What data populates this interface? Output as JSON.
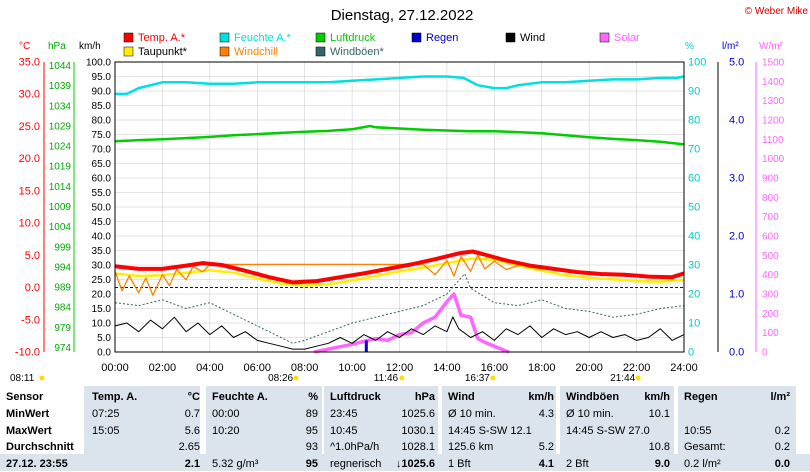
{
  "header": {
    "title": "Dienstag, 27.12.2022",
    "credit": "© Weber Mike"
  },
  "units": {
    "temp": "°C",
    "pressure": "hPa",
    "wind": "km/h",
    "humidity": "%",
    "rain": "l/m²",
    "solar": "W/m²"
  },
  "legend": [
    {
      "label": "Temp. A.*",
      "color": "#ff0000"
    },
    {
      "label": "Feuchte A.*",
      "color": "#00e0e0"
    },
    {
      "label": "Luftdruck",
      "color": "#00cc00"
    },
    {
      "label": "Regen",
      "color": "#0000cc"
    },
    {
      "label": "Wind",
      "color": "#000000"
    },
    {
      "label": "Solar",
      "color": "#ff66ff"
    },
    {
      "label": "Taupunkt*",
      "color": "#ffee00"
    },
    {
      "label": "Windchill",
      "color": "#ff8000"
    },
    {
      "label": "Windböen*",
      "color": "#336666"
    }
  ],
  "axes": {
    "temp_ticks": [
      "35.0",
      "30.0",
      "25.0",
      "20.0",
      "15.0",
      "10.0",
      "5.0",
      "0.0",
      "-5.0",
      "-10.0"
    ],
    "pressure_ticks": [
      "1044",
      "1039",
      "1034",
      "1029",
      "1024",
      "1019",
      "1014",
      "1009",
      "1004",
      "999",
      "994",
      "989",
      "984",
      "979",
      "974"
    ],
    "wind_ticks": [
      "100.0",
      "95.0",
      "90.0",
      "85.0",
      "80.0",
      "75.0",
      "70.0",
      "65.0",
      "60.0",
      "55.0",
      "50.0",
      "45.0",
      "40.0",
      "35.0",
      "30.0",
      "25.0",
      "20.0",
      "15.0",
      "10.0",
      "5.0",
      "0.0"
    ],
    "hum_ticks": [
      "100",
      "90",
      "80",
      "70",
      "60",
      "50",
      "40",
      "30",
      "20",
      "10",
      "0"
    ],
    "rain_ticks": [
      "5.0",
      "4.0",
      "3.0",
      "2.0",
      "1.0",
      "0.0"
    ],
    "solar_ticks": [
      "1500",
      "1400",
      "1300",
      "1200",
      "1100",
      "1000",
      "900",
      "800",
      "700",
      "600",
      "500",
      "400",
      "300",
      "200",
      "100",
      "0"
    ],
    "time_ticks": [
      "00:00",
      "02:00",
      "04:00",
      "06:00",
      "08:00",
      "10:00",
      "12:00",
      "14:00",
      "16:00",
      "18:00",
      "20:00",
      "22:00",
      "24:00"
    ],
    "events": [
      {
        "label": "08:11",
        "hour": 0
      },
      {
        "label": "08:26",
        "hour": 7.3
      },
      {
        "label": "11:46",
        "hour": 11.76
      },
      {
        "label": "16:37",
        "hour": 15.6
      },
      {
        "label": "21:44",
        "hour": 21.73
      }
    ]
  },
  "chart_data": {
    "type": "line",
    "x_unit": "hour",
    "xlim": [
      0,
      24
    ],
    "series": [
      {
        "name": "Temp. A.*",
        "axis": "temp",
        "ylim": [
          -10,
          35
        ],
        "color": "#ff0000",
        "x": [
          0,
          1,
          2,
          3,
          3.7,
          4.5,
          5.5,
          6.5,
          7.5,
          8.5,
          9.5,
          10.5,
          11.5,
          12.5,
          13.5,
          14.5,
          15.08,
          15.5,
          16.5,
          17.5,
          18.5,
          19.5,
          20.5,
          21.5,
          22.5,
          23.5,
          24
        ],
        "y": [
          3.3,
          2.9,
          2.9,
          3.4,
          3.8,
          3.5,
          2.6,
          1.6,
          0.8,
          1.0,
          1.6,
          2.2,
          2.9,
          3.6,
          4.4,
          5.3,
          5.6,
          5.2,
          4.2,
          3.4,
          2.9,
          2.4,
          2.1,
          2.0,
          1.7,
          1.6,
          2.2
        ]
      },
      {
        "name": "Taupunkt*",
        "axis": "temp",
        "ylim": [
          -10,
          35
        ],
        "color": "#ffee00",
        "x": [
          0,
          1,
          2,
          3,
          4,
          5,
          6,
          7,
          8,
          9,
          10,
          11,
          12,
          13,
          14,
          15,
          16,
          17,
          18,
          19,
          20,
          21,
          22,
          23,
          24
        ],
        "y": [
          2.2,
          1.8,
          1.9,
          2.3,
          2.7,
          2.3,
          1.4,
          0.6,
          0.3,
          0.5,
          1.1,
          1.8,
          2.5,
          3.1,
          3.8,
          4.5,
          4.3,
          3.4,
          2.6,
          1.9,
          1.5,
          1.3,
          1.0,
          0.9,
          1.2
        ]
      },
      {
        "name": "Windchill",
        "axis": "temp",
        "ylim": [
          -10,
          35
        ],
        "color": "#ff8000",
        "x": [
          0,
          0.3,
          0.6,
          1,
          1.3,
          1.6,
          2,
          2.3,
          2.6,
          3,
          3.3,
          3.7,
          4,
          13,
          13.5,
          14,
          14.3,
          14.6,
          15,
          15.3,
          15.6,
          16,
          16.5,
          17
        ],
        "y": [
          2.5,
          -0.5,
          1.8,
          -0.8,
          1.5,
          -1.2,
          2.0,
          0.3,
          2.8,
          1.2,
          3.3,
          2.4,
          3.6,
          3.6,
          2.0,
          4.2,
          1.8,
          4.8,
          2.5,
          5.0,
          2.9,
          4.1,
          2.8,
          3.4
        ]
      },
      {
        "name": "Feuchte A.*",
        "axis": "humidity",
        "ylim": [
          0,
          100
        ],
        "color": "#00e0e0",
        "x": [
          0,
          0.5,
          1,
          2,
          3,
          4,
          5,
          6,
          7,
          8,
          9,
          10,
          11,
          12,
          13,
          14,
          14.7,
          15.3,
          16,
          16.5,
          17,
          18,
          19,
          20,
          21,
          22,
          23,
          23.7,
          24
        ],
        "y": [
          89,
          89,
          91,
          93,
          93,
          92.5,
          92.5,
          93,
          93,
          93,
          93,
          93.5,
          94,
          94.5,
          95,
          95,
          94.5,
          92,
          91,
          91,
          92,
          93,
          93,
          93.5,
          94,
          94,
          94.5,
          94.5,
          95
        ]
      },
      {
        "name": "Luftdruck",
        "axis": "pressure",
        "ylim": [
          974,
          1046
        ],
        "color": "#00cc00",
        "x": [
          0,
          1,
          2,
          3,
          4,
          5,
          6,
          7,
          8,
          9,
          10,
          10.75,
          11,
          12,
          13,
          14,
          15,
          16,
          17,
          18,
          19,
          20,
          21,
          22,
          23,
          23.95,
          24
        ],
        "y": [
          1026.3,
          1026.6,
          1026.8,
          1027.1,
          1027.4,
          1027.8,
          1028.1,
          1028.4,
          1028.7,
          1028.9,
          1029.3,
          1030.1,
          1029.8,
          1029.5,
          1029.2,
          1029.0,
          1028.8,
          1028.8,
          1028.6,
          1028.3,
          1027.8,
          1027.3,
          1026.9,
          1026.6,
          1026.2,
          1025.6,
          1025.6
        ]
      },
      {
        "name": "Wind",
        "axis": "wind",
        "ylim": [
          0,
          100
        ],
        "color": "#000000",
        "x": [
          0,
          0.5,
          1,
          1.5,
          2,
          2.5,
          3,
          3.5,
          4,
          4.5,
          5,
          5.5,
          6,
          6.5,
          7,
          7.5,
          8,
          8.5,
          9,
          9.5,
          10,
          10.5,
          11,
          11.5,
          12,
          12.5,
          13,
          13.5,
          14,
          14.25,
          14.5,
          15,
          15.5,
          16,
          16.5,
          17,
          17.5,
          18,
          18.5,
          19,
          19.5,
          20,
          20.5,
          21,
          21.5,
          22,
          22.5,
          23,
          23.5,
          24
        ],
        "y": [
          9,
          10,
          7,
          11,
          8,
          12,
          7,
          10,
          6,
          9,
          5,
          7,
          4,
          3,
          2,
          1,
          1,
          2,
          3,
          5,
          3,
          6,
          4,
          7,
          5,
          8,
          6,
          9,
          7,
          12.1,
          8,
          5,
          7,
          4,
          8,
          6,
          9,
          5,
          8,
          6,
          7,
          5,
          7,
          5,
          6,
          4,
          5,
          8,
          4,
          6
        ]
      },
      {
        "name": "Windböen*",
        "axis": "wind",
        "ylim": [
          0,
          100
        ],
        "color": "#336666",
        "x": [
          0,
          1,
          2,
          3,
          4,
          5,
          6,
          7,
          7.5,
          8,
          9,
          10,
          11,
          12,
          13,
          14,
          14.75,
          15,
          16,
          17,
          18,
          19,
          20,
          21,
          22,
          23,
          24
        ],
        "y": [
          17,
          16,
          18,
          15,
          17,
          13,
          9,
          5,
          3,
          4,
          7,
          10,
          12,
          14,
          16,
          20,
          27,
          22,
          17,
          16,
          18,
          15,
          14,
          12,
          13,
          15,
          16
        ]
      },
      {
        "name": "Solar",
        "axis": "solar",
        "ylim": [
          0,
          1500
        ],
        "color": "#ff66ff",
        "x": [
          8.4,
          9,
          10,
          11,
          11.5,
          12,
          12.5,
          13,
          13.5,
          14,
          14.3,
          14.6,
          15,
          15.3,
          15.6,
          16,
          16.4,
          16.62
        ],
        "y": [
          0,
          15,
          40,
          70,
          60,
          90,
          100,
          150,
          180,
          260,
          300,
          190,
          180,
          70,
          50,
          30,
          10,
          0
        ]
      },
      {
        "name": "Regen",
        "axis": "rain",
        "ylim": [
          0,
          5
        ],
        "color": "#0000cc",
        "x": [
          10.6,
          10.6
        ],
        "y": [
          0,
          0.2
        ]
      }
    ]
  },
  "table": {
    "headers": [
      "Sensor",
      "Temp. A.",
      "°C",
      "Feuchte A.",
      "%",
      "Luftdruck",
      "hPa",
      "Wind",
      "km/h",
      "Windböen",
      "km/h",
      "Regen",
      "l/m²"
    ],
    "rows": [
      [
        "MinWert",
        "07:25",
        "0.7",
        "00:00",
        "89",
        "23:45",
        "1025.6",
        "Ø 10 min.",
        "4.3",
        "Ø 10 min.",
        "10.1",
        "",
        ""
      ],
      [
        "MaxWert",
        "15:05",
        "5.6",
        "10:20",
        "95",
        "10:45",
        "1030.1",
        "14:45    S-SW 12.1",
        "",
        "14:45    S-SW 27.0",
        "",
        "10:55",
        "0.2"
      ],
      [
        "Durchschnitt",
        "",
        "2.65",
        "",
        "93",
        "^1.0hPa/h",
        "1028.1",
        "125.6 km",
        "5.2",
        "",
        "10.8",
        "Gesamt:",
        "0.2"
      ],
      [
        "27.12. 23:55",
        "",
        "2.1",
        "5.32 g/m³",
        "95",
        "regnerisch",
        "↓1025.6",
        "1 Bft",
        "4.1",
        "2 Bft",
        "9.0",
        "0.2 l/m²",
        "0.0"
      ]
    ]
  }
}
